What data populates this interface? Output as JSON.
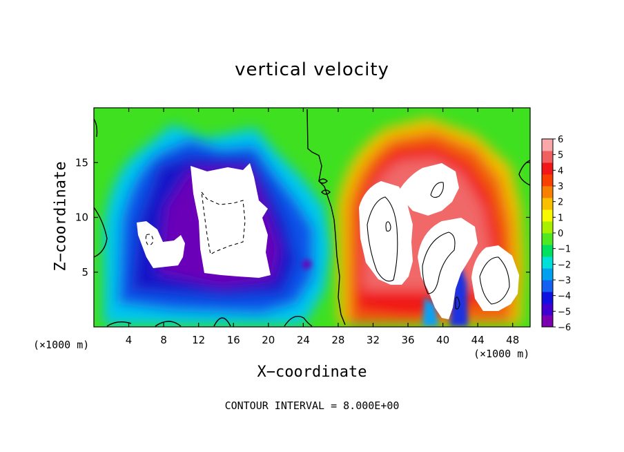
{
  "chart_data": {
    "type": "heatmap",
    "title": "vertical velocity",
    "xlabel": "X−coordinate",
    "ylabel": "Z−coordinate",
    "x_unit_note": "(×1000 m)",
    "footnote": "CONTOUR INTERVAL = 8.000E+00",
    "x_range": [
      0,
      50
    ],
    "y_range": [
      0,
      20
    ],
    "x_ticks": [
      4,
      8,
      12,
      16,
      20,
      24,
      28,
      32,
      36,
      40,
      44,
      48
    ],
    "y_ticks": [
      5,
      10,
      15
    ],
    "colorbar": {
      "range": [
        -6,
        6
      ],
      "ticks": [
        "6",
        "5",
        "4",
        "3",
        "2",
        "1",
        "0",
        "−1",
        "−2",
        "−3",
        "−4",
        "−5",
        "−6"
      ],
      "colors": [
        "#7a00b0",
        "#4200d0",
        "#1010e0",
        "#1460f0",
        "#00a0f0",
        "#00e0d8",
        "#00e060",
        "#50e820",
        "#a8f000",
        "#f8f800",
        "#f8c000",
        "#f88000",
        "#f84000",
        "#f01818",
        "#f06060",
        "#f8a8a8"
      ]
    },
    "features": [
      {
        "kind": "downdraft",
        "x": 16,
        "z": 10,
        "value": -6
      },
      {
        "kind": "downdraft",
        "x": 7,
        "z": 7.5,
        "value": -6
      },
      {
        "kind": "updraft",
        "x": 34,
        "z": 9,
        "value": 6
      },
      {
        "kind": "updraft",
        "x": 39,
        "z": 7,
        "value": 6
      },
      {
        "kind": "updraft",
        "x": 45.5,
        "z": 4.5,
        "value": 6
      },
      {
        "kind": "updraft",
        "x": 38.5,
        "z": 12,
        "value": 6
      }
    ]
  }
}
